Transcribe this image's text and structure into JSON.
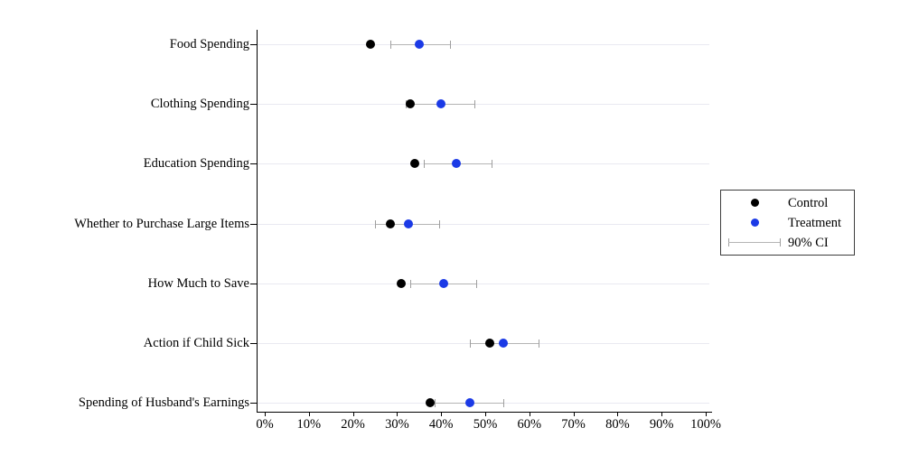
{
  "chart_data": {
    "type": "scatter",
    "subtype": "horizontal-dot-plot-with-ci",
    "title": "",
    "xlabel": "",
    "ylabel": "",
    "xlim": [
      0,
      100
    ],
    "x_ticks": [
      "0%",
      "10%",
      "20%",
      "30%",
      "40%",
      "50%",
      "60%",
      "70%",
      "80%",
      "90%",
      "100%"
    ],
    "x_tick_values": [
      0,
      10,
      20,
      30,
      40,
      50,
      60,
      70,
      80,
      90,
      100
    ],
    "grid": "horizontal-faint",
    "legend_position": "outside-right",
    "categories": [
      "Food Spending",
      "Clothing Spending",
      "Education Spending",
      "Whether to Purchase Large Items",
      "How Much to Save",
      "Action if Child Sick",
      "Spending of Husband's Earnings"
    ],
    "series": [
      {
        "name": "Control",
        "color": "#000000",
        "values": [
          24,
          33,
          34,
          28.5,
          31,
          51,
          37.5
        ]
      },
      {
        "name": "Treatment",
        "color": "#1b3ae6",
        "values": [
          35,
          40,
          43.5,
          32.5,
          40.5,
          54,
          46.5
        ]
      }
    ],
    "ci": {
      "label": "90% CI",
      "attached_to": "Treatment",
      "color": "#b4b4b4",
      "cap_color": "#9e9e9e",
      "low": [
        28.5,
        32,
        36,
        25,
        33,
        46.5,
        38.5
      ],
      "high": [
        42,
        47.5,
        51.5,
        39.5,
        48,
        62,
        54
      ]
    },
    "colors": {
      "axis": "#000000",
      "gridline": "#e9e9f1",
      "background": "#ffffff"
    }
  },
  "legend": {
    "items": [
      {
        "marker": "dot",
        "color": "#000000",
        "label": "Control"
      },
      {
        "marker": "dot",
        "color": "#1b3ae6",
        "label": "Treatment"
      },
      {
        "marker": "ci-bar",
        "color": "#b4b4b4",
        "label": "90% CI"
      }
    ]
  }
}
